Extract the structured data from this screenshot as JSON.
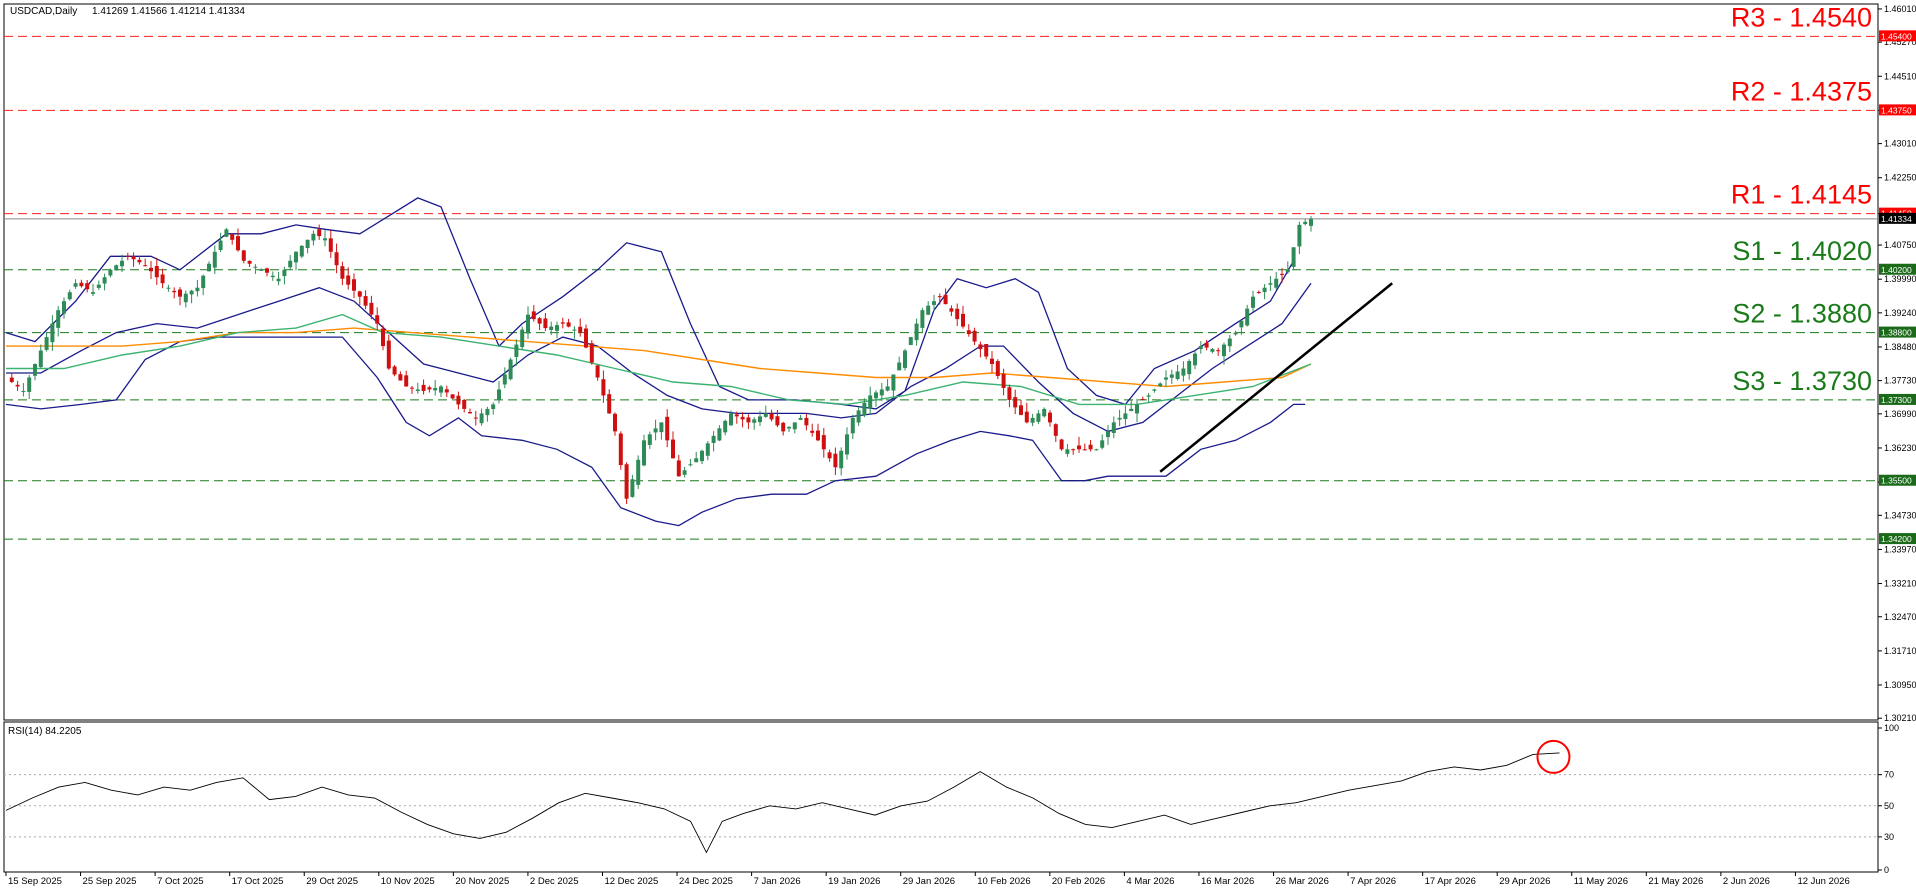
{
  "header": {
    "symbol": "USDCAD,Daily",
    "ohlc": "1.41269 1.41566 1.41214 1.41334"
  },
  "rsi_header": "RSI(14) 84.2205",
  "colors": {
    "bull": "#2e8b57",
    "bear": "#d01010",
    "bollinger": "#1a1a8c",
    "sma_fast": "#3cb371",
    "sma_slow": "#ff8c00",
    "trendline": "#000000",
    "resistance": "#ff0000",
    "support": "#1a7a1a",
    "rsi": "#000000",
    "rsi_marker": "#ff0000"
  },
  "levels": [
    {
      "id": "R3",
      "label": "R3 - 1.4540",
      "tag": "1.45400",
      "value": 1.454,
      "kind": "resistance"
    },
    {
      "id": "R2",
      "label": "R2 - 1.4375",
      "tag": "1.43750",
      "value": 1.4375,
      "kind": "resistance"
    },
    {
      "id": "R1",
      "label": "R1 - 1.4145",
      "tag": "1.41450",
      "value": 1.4145,
      "kind": "resistance"
    },
    {
      "id": "S1",
      "label": "S1 - 1.4020",
      "tag": "1.40200",
      "value": 1.402,
      "kind": "support"
    },
    {
      "id": "S2",
      "label": "S2 - 1.3880",
      "tag": "1.38800",
      "value": 1.388,
      "kind": "support"
    },
    {
      "id": "S3",
      "label": "S3 - 1.3730",
      "tag": "1.37300",
      "value": 1.373,
      "kind": "support"
    },
    {
      "id": "L1",
      "label": "",
      "tag": "1.35500",
      "value": 1.355,
      "kind": "support"
    },
    {
      "id": "L2",
      "label": "",
      "tag": "1.34200",
      "value": 1.342,
      "kind": "support"
    }
  ],
  "chart_data": {
    "type": "candlestick",
    "title": "USDCAD,Daily",
    "price_axis": {
      "ylim": [
        1.3017,
        1.4612
      ],
      "ticks": [
        "1.46010",
        "1.45270",
        "1.44510",
        "1.43750",
        "1.43010",
        "1.42250",
        "1.41450",
        "1.40750",
        "1.39990",
        "1.39240",
        "1.38480",
        "1.37730",
        "1.36990",
        "1.36230",
        "1.35470",
        "1.34730",
        "1.33970",
        "1.33210",
        "1.32470",
        "1.31710",
        "1.30950",
        "1.30210"
      ],
      "current_price": "1.41334",
      "current_price_value": 1.41334
    },
    "date_axis": [
      "15 Sep 2025",
      "25 Sep 2025",
      "7 Oct 2025",
      "17 Oct 2025",
      "29 Oct 2025",
      "10 Nov 2025",
      "20 Nov 2025",
      "2 Dec 2025",
      "12 Dec 2025",
      "24 Dec 2025",
      "7 Jan 2026",
      "19 Jan 2026",
      "29 Jan 2026",
      "10 Feb 2026",
      "20 Feb 2026",
      "4 Mar 2026",
      "16 Mar 2026",
      "26 Mar 2026",
      "7 Apr 2026",
      "17 Apr 2026",
      "29 Apr 2026",
      "11 May 2026",
      "21 May 2026",
      "2 Jun 2026",
      "12 Jun 2026"
    ],
    "close_path": [
      [
        0,
        1.378
      ],
      [
        3,
        1.375
      ],
      [
        6,
        1.384
      ],
      [
        9,
        1.393
      ],
      [
        12,
        1.399
      ],
      [
        15,
        1.397
      ],
      [
        18,
        1.402
      ],
      [
        21,
        1.405
      ],
      [
        24,
        1.403
      ],
      [
        27,
        1.399
      ],
      [
        30,
        1.396
      ],
      [
        33,
        1.398
      ],
      [
        36,
        1.406
      ],
      [
        38,
        1.411
      ],
      [
        41,
        1.404
      ],
      [
        44,
        1.402
      ],
      [
        47,
        1.4
      ],
      [
        50,
        1.406
      ],
      [
        53,
        1.41
      ],
      [
        55,
        1.409
      ],
      [
        58,
        1.4
      ],
      [
        61,
        1.396
      ],
      [
        64,
        1.39
      ],
      [
        66,
        1.38
      ],
      [
        69,
        1.376
      ],
      [
        72,
        1.375
      ],
      [
        75,
        1.376
      ],
      [
        78,
        1.372
      ],
      [
        81,
        1.369
      ],
      [
        84,
        1.372
      ],
      [
        87,
        1.382
      ],
      [
        90,
        1.392
      ],
      [
        93,
        1.389
      ],
      [
        96,
        1.39
      ],
      [
        99,
        1.388
      ],
      [
        102,
        1.378
      ],
      [
        105,
        1.366
      ],
      [
        107,
        1.351
      ],
      [
        110,
        1.364
      ],
      [
        113,
        1.368
      ],
      [
        116,
        1.356
      ],
      [
        119,
        1.36
      ],
      [
        122,
        1.365
      ],
      [
        125,
        1.37
      ],
      [
        128,
        1.368
      ],
      [
        131,
        1.37
      ],
      [
        134,
        1.366
      ],
      [
        137,
        1.369
      ],
      [
        140,
        1.364
      ],
      [
        143,
        1.358
      ],
      [
        146,
        1.369
      ],
      [
        149,
        1.374
      ],
      [
        152,
        1.376
      ],
      [
        155,
        1.384
      ],
      [
        158,
        1.393
      ],
      [
        161,
        1.396
      ],
      [
        164,
        1.391
      ],
      [
        167,
        1.386
      ],
      [
        170,
        1.381
      ],
      [
        173,
        1.373
      ],
      [
        176,
        1.368
      ],
      [
        179,
        1.371
      ],
      [
        182,
        1.362
      ],
      [
        185,
        1.362
      ],
      [
        188,
        1.362
      ],
      [
        191,
        1.368
      ],
      [
        194,
        1.371
      ],
      [
        197,
        1.374
      ],
      [
        200,
        1.378
      ],
      [
        203,
        1.38
      ],
      [
        206,
        1.385
      ],
      [
        209,
        1.384
      ],
      [
        212,
        1.388
      ],
      [
        215,
        1.396
      ],
      [
        218,
        1.399
      ],
      [
        221,
        1.402
      ],
      [
        223,
        1.412
      ],
      [
        225,
        1.41334
      ]
    ],
    "bollinger_upper": [
      [
        0,
        1.388
      ],
      [
        5,
        1.386
      ],
      [
        12,
        1.395
      ],
      [
        18,
        1.405
      ],
      [
        25,
        1.405
      ],
      [
        30,
        1.402
      ],
      [
        38,
        1.41
      ],
      [
        44,
        1.41
      ],
      [
        50,
        1.412
      ],
      [
        55,
        1.411
      ],
      [
        61,
        1.41
      ],
      [
        66,
        1.414
      ],
      [
        71,
        1.418
      ],
      [
        75,
        1.416
      ],
      [
        80,
        1.4
      ],
      [
        85,
        1.385
      ],
      [
        89,
        1.39
      ],
      [
        96,
        1.396
      ],
      [
        102,
        1.402
      ],
      [
        107,
        1.408
      ],
      [
        113,
        1.406
      ],
      [
        118,
        1.39
      ],
      [
        123,
        1.376
      ],
      [
        128,
        1.373
      ],
      [
        136,
        1.373
      ],
      [
        144,
        1.372
      ],
      [
        150,
        1.371
      ],
      [
        155,
        1.375
      ],
      [
        160,
        1.393
      ],
      [
        164,
        1.4
      ],
      [
        169,
        1.398
      ],
      [
        174,
        1.4
      ],
      [
        178,
        1.397
      ],
      [
        183,
        1.38
      ],
      [
        188,
        1.374
      ],
      [
        193,
        1.372
      ],
      [
        198,
        1.38
      ],
      [
        205,
        1.384
      ],
      [
        212,
        1.39
      ],
      [
        218,
        1.395
      ],
      [
        222,
        1.404
      ]
    ],
    "bollinger_middle": [
      [
        0,
        1.379
      ],
      [
        6,
        1.379
      ],
      [
        13,
        1.384
      ],
      [
        19,
        1.388
      ],
      [
        26,
        1.39
      ],
      [
        33,
        1.389
      ],
      [
        40,
        1.392
      ],
      [
        47,
        1.395
      ],
      [
        54,
        1.398
      ],
      [
        60,
        1.395
      ],
      [
        66,
        1.388
      ],
      [
        72,
        1.381
      ],
      [
        78,
        1.379
      ],
      [
        84,
        1.377
      ],
      [
        90,
        1.383
      ],
      [
        96,
        1.387
      ],
      [
        102,
        1.385
      ],
      [
        108,
        1.379
      ],
      [
        114,
        1.374
      ],
      [
        120,
        1.371
      ],
      [
        126,
        1.37
      ],
      [
        132,
        1.37
      ],
      [
        138,
        1.37
      ],
      [
        144,
        1.369
      ],
      [
        150,
        1.37
      ],
      [
        156,
        1.376
      ],
      [
        162,
        1.38
      ],
      [
        168,
        1.385
      ],
      [
        172,
        1.385
      ],
      [
        178,
        1.377
      ],
      [
        184,
        1.37
      ],
      [
        190,
        1.366
      ],
      [
        196,
        1.368
      ],
      [
        202,
        1.374
      ],
      [
        208,
        1.38
      ],
      [
        214,
        1.385
      ],
      [
        220,
        1.39
      ],
      [
        225,
        1.399
      ]
    ],
    "bollinger_lower": [
      [
        0,
        1.372
      ],
      [
        6,
        1.371
      ],
      [
        13,
        1.372
      ],
      [
        19,
        1.373
      ],
      [
        24,
        1.382
      ],
      [
        30,
        1.386
      ],
      [
        36,
        1.387
      ],
      [
        44,
        1.387
      ],
      [
        52,
        1.387
      ],
      [
        58,
        1.387
      ],
      [
        64,
        1.378
      ],
      [
        69,
        1.368
      ],
      [
        73,
        1.365
      ],
      [
        78,
        1.369
      ],
      [
        82,
        1.365
      ],
      [
        89,
        1.364
      ],
      [
        95,
        1.362
      ],
      [
        101,
        1.358
      ],
      [
        106,
        1.349
      ],
      [
        112,
        1.346
      ],
      [
        116,
        1.345
      ],
      [
        120,
        1.348
      ],
      [
        126,
        1.351
      ],
      [
        132,
        1.352
      ],
      [
        138,
        1.352
      ],
      [
        143,
        1.355
      ],
      [
        150,
        1.356
      ],
      [
        157,
        1.361
      ],
      [
        163,
        1.364
      ],
      [
        168,
        1.366
      ],
      [
        173,
        1.365
      ],
      [
        177,
        1.364
      ],
      [
        182,
        1.355
      ],
      [
        186,
        1.355
      ],
      [
        190,
        1.356
      ],
      [
        196,
        1.356
      ],
      [
        200,
        1.356
      ],
      [
        206,
        1.362
      ],
      [
        212,
        1.364
      ],
      [
        218,
        1.368
      ],
      [
        222,
        1.372
      ],
      [
        224,
        1.372
      ]
    ],
    "sma_fast": [
      [
        0,
        1.38
      ],
      [
        10,
        1.38
      ],
      [
        20,
        1.383
      ],
      [
        30,
        1.385
      ],
      [
        40,
        1.388
      ],
      [
        50,
        1.389
      ],
      [
        58,
        1.392
      ],
      [
        65,
        1.388
      ],
      [
        75,
        1.387
      ],
      [
        85,
        1.385
      ],
      [
        95,
        1.383
      ],
      [
        105,
        1.38
      ],
      [
        115,
        1.377
      ],
      [
        125,
        1.376
      ],
      [
        135,
        1.373
      ],
      [
        145,
        1.372
      ],
      [
        155,
        1.374
      ],
      [
        165,
        1.377
      ],
      [
        175,
        1.376
      ],
      [
        185,
        1.372
      ],
      [
        195,
        1.372
      ],
      [
        205,
        1.374
      ],
      [
        215,
        1.376
      ],
      [
        225,
        1.381
      ]
    ],
    "sma_slow": [
      [
        0,
        1.385
      ],
      [
        10,
        1.385
      ],
      [
        20,
        1.385
      ],
      [
        30,
        1.386
      ],
      [
        40,
        1.388
      ],
      [
        50,
        1.388
      ],
      [
        60,
        1.389
      ],
      [
        70,
        1.388
      ],
      [
        80,
        1.387
      ],
      [
        90,
        1.386
      ],
      [
        100,
        1.385
      ],
      [
        110,
        1.384
      ],
      [
        120,
        1.382
      ],
      [
        130,
        1.38
      ],
      [
        140,
        1.379
      ],
      [
        150,
        1.378
      ],
      [
        160,
        1.378
      ],
      [
        170,
        1.379
      ],
      [
        180,
        1.378
      ],
      [
        190,
        1.377
      ],
      [
        200,
        1.376
      ],
      [
        210,
        1.377
      ],
      [
        220,
        1.378
      ],
      [
        225,
        1.381
      ]
    ],
    "trendline": [
      [
        199,
        1.357
      ],
      [
        239,
        1.399
      ]
    ],
    "rsi": {
      "label": "RSI(14) 84.2205",
      "ylim": [
        10,
        100
      ],
      "ticks": [
        "100",
        "70",
        "50",
        "30",
        "0"
      ],
      "levels": [
        70,
        50,
        30
      ],
      "values": [
        [
          0,
          47
        ],
        [
          5,
          55
        ],
        [
          10,
          62
        ],
        [
          15,
          65
        ],
        [
          20,
          60
        ],
        [
          25,
          57
        ],
        [
          30,
          62
        ],
        [
          35,
          60
        ],
        [
          40,
          65
        ],
        [
          45,
          68
        ],
        [
          50,
          54
        ],
        [
          55,
          56
        ],
        [
          60,
          62
        ],
        [
          65,
          57
        ],
        [
          70,
          55
        ],
        [
          75,
          46
        ],
        [
          80,
          38
        ],
        [
          85,
          32
        ],
        [
          90,
          29
        ],
        [
          95,
          33
        ],
        [
          100,
          42
        ],
        [
          105,
          52
        ],
        [
          110,
          58
        ],
        [
          115,
          55
        ],
        [
          120,
          52
        ],
        [
          125,
          48
        ],
        [
          130,
          40
        ],
        [
          133,
          20
        ],
        [
          136,
          40
        ],
        [
          140,
          45
        ],
        [
          145,
          50
        ],
        [
          150,
          48
        ],
        [
          155,
          52
        ],
        [
          160,
          48
        ],
        [
          165,
          44
        ],
        [
          170,
          50
        ],
        [
          175,
          53
        ],
        [
          180,
          62
        ],
        [
          185,
          72
        ],
        [
          190,
          62
        ],
        [
          195,
          55
        ],
        [
          200,
          45
        ],
        [
          205,
          38
        ],
        [
          210,
          36
        ],
        [
          215,
          40
        ],
        [
          220,
          44
        ],
        [
          225,
          38
        ],
        [
          230,
          42
        ],
        [
          235,
          46
        ],
        [
          240,
          50
        ],
        [
          245,
          52
        ],
        [
          250,
          56
        ],
        [
          255,
          60
        ],
        [
          260,
          63
        ],
        [
          265,
          66
        ],
        [
          270,
          72
        ],
        [
          275,
          75
        ],
        [
          280,
          73
        ],
        [
          285,
          76
        ],
        [
          290,
          83
        ],
        [
          295,
          84
        ]
      ],
      "rsi_x_scale": 0.77
    }
  }
}
